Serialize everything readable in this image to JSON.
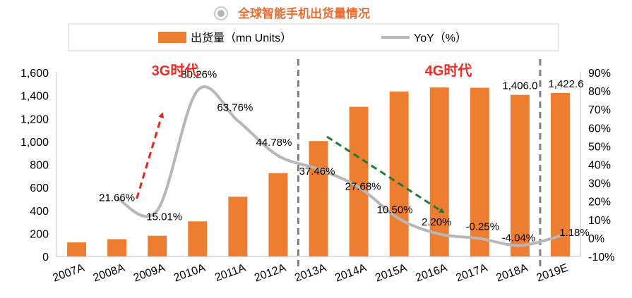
{
  "header": {
    "title": "全球智能手机出货量情况",
    "title_color": "#ee6b2d",
    "bullet_icon": "target-circle-icon"
  },
  "chart_data": {
    "type": "bar+line",
    "categories": [
      "2007A",
      "2008A",
      "2009A",
      "2010A",
      "2011A",
      "2012A",
      "2013A",
      "2014A",
      "2015A",
      "2016A",
      "2017A",
      "2018A",
      "2019E"
    ],
    "series": [
      {
        "name": "出货量（mn Units）",
        "type": "bar",
        "axis": "left",
        "color": "#ed7d31",
        "values": [
          122,
          150,
          180,
          305,
          520,
          725,
          1004,
          1302,
          1435,
          1470,
          1468,
          1406.0,
          1422.6
        ]
      },
      {
        "name": "YoY（%）",
        "type": "line",
        "axis": "right",
        "color": "#b7b7b7",
        "values": [
          null,
          21.66,
          15.01,
          80.26,
          63.76,
          44.78,
          37.46,
          27.68,
          10.5,
          2.2,
          -0.25,
          -4.04,
          1.18
        ]
      }
    ],
    "bar_labels": {
      "11": "1,406.0",
      "12": "1,422.6"
    },
    "line_labels": [
      "",
      "21.66%",
      "15.01%",
      "80.26%",
      "63.76%",
      "44.78%",
      "37.46%",
      "27.68%",
      "10.50%",
      "2.20%",
      "-0.25%",
      "-4.04%",
      "1.18%"
    ],
    "left_axis": {
      "min": 0,
      "max": 1600,
      "step": 200,
      "ticks": [
        "0",
        "200",
        "400",
        "600",
        "800",
        "1,000",
        "1,200",
        "1,400",
        "1,600"
      ]
    },
    "right_axis": {
      "min": -10,
      "max": 90,
      "step": 10,
      "ticks": [
        "-10%",
        "0%",
        "10%",
        "20%",
        "30%",
        "40%",
        "50%",
        "60%",
        "70%",
        "80%",
        "90%"
      ]
    },
    "legend_position": "top",
    "grid": false,
    "annotations": {
      "era_3g": {
        "label": "3G时代",
        "color": "#ee2a24"
      },
      "era_4g": {
        "label": "4G时代",
        "color": "#ee2a24"
      },
      "divider_before": [
        "2013A",
        "2019E"
      ],
      "divider_color": "#808080",
      "arrow_up": {
        "color": "#e8231c",
        "from": "2008A",
        "to": "2009A"
      },
      "arrow_down": {
        "color": "#1e7b32",
        "from": "2013A",
        "to": "2016A"
      }
    }
  }
}
